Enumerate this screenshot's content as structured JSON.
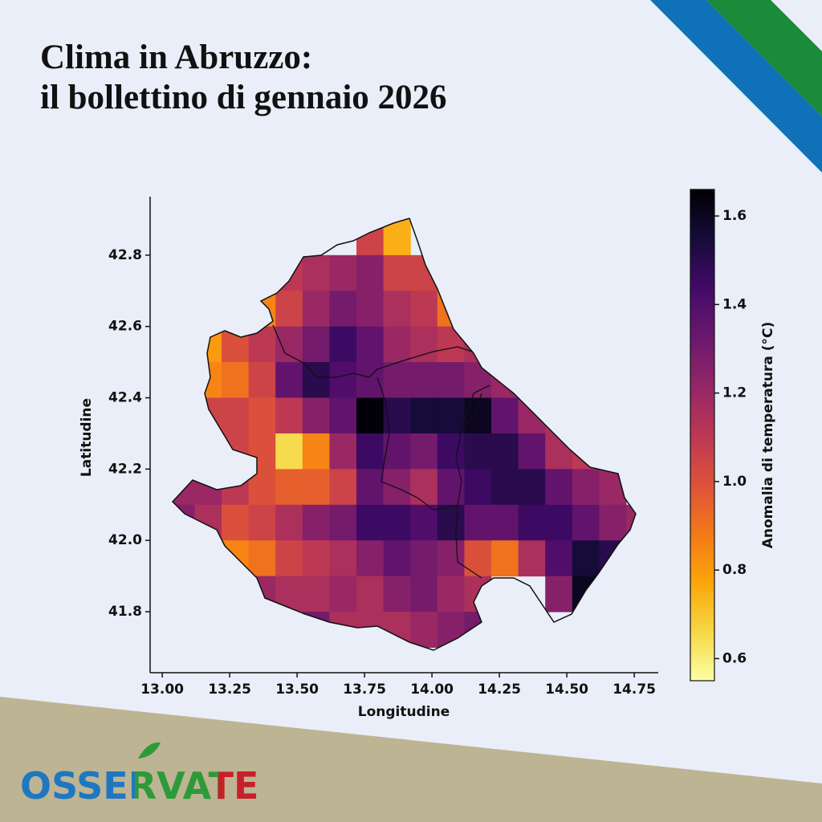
{
  "title_lines": [
    "Clima in Abruzzo:",
    "il bollettino di gennaio 2026"
  ],
  "logo": "OSSERVATE",
  "chart_data": {
    "type": "heatmap",
    "colormap": "inferno_r",
    "xlabel": "Longitudine",
    "ylabel": "Latitudine",
    "colorbar_label": "Anomalia di temperatura (°C)",
    "x": [
      13.07,
      13.17,
      13.27,
      13.37,
      13.47,
      13.57,
      13.67,
      13.77,
      13.87,
      13.97,
      14.07,
      14.17,
      14.27,
      14.37,
      14.47,
      14.57,
      14.67,
      14.77
    ],
    "y": [
      42.85,
      42.75,
      42.65,
      42.55,
      42.45,
      42.35,
      42.25,
      42.15,
      42.05,
      41.95,
      41.85,
      41.75
    ],
    "values": [
      [
        null,
        null,
        null,
        null,
        null,
        null,
        null,
        1.05,
        0.75,
        null,
        null,
        null,
        null,
        null,
        null,
        null,
        null,
        null
      ],
      [
        null,
        null,
        null,
        null,
        1.1,
        1.15,
        1.2,
        1.25,
        1.05,
        1.05,
        null,
        null,
        null,
        null,
        null,
        null,
        null,
        null
      ],
      [
        null,
        null,
        null,
        0.85,
        1.05,
        1.2,
        1.3,
        1.25,
        1.15,
        1.1,
        0.9,
        null,
        null,
        null,
        null,
        null,
        null,
        null
      ],
      [
        null,
        0.8,
        1.0,
        1.1,
        1.2,
        1.3,
        1.45,
        1.35,
        1.2,
        1.15,
        1.1,
        1.15,
        null,
        null,
        null,
        null,
        null,
        null
      ],
      [
        null,
        0.85,
        0.9,
        1.05,
        1.35,
        1.5,
        1.4,
        1.35,
        1.3,
        1.3,
        1.3,
        1.25,
        1.2,
        null,
        null,
        null,
        null,
        null
      ],
      [
        null,
        1.05,
        1.05,
        1.0,
        1.1,
        1.25,
        1.35,
        1.65,
        1.5,
        1.55,
        1.55,
        1.6,
        1.35,
        1.2,
        1.15,
        null,
        null,
        null
      ],
      [
        null,
        1.1,
        1.05,
        1.0,
        0.65,
        0.85,
        1.2,
        1.45,
        1.35,
        1.3,
        1.45,
        1.5,
        1.5,
        1.35,
        1.15,
        1.1,
        null,
        null
      ],
      [
        1.2,
        1.2,
        1.1,
        1.0,
        0.95,
        0.95,
        1.05,
        1.35,
        1.25,
        1.15,
        1.35,
        1.45,
        1.5,
        1.5,
        1.35,
        1.25,
        1.2,
        null
      ],
      [
        1.25,
        1.15,
        1.0,
        1.05,
        1.15,
        1.25,
        1.3,
        1.45,
        1.45,
        1.4,
        1.5,
        1.35,
        1.35,
        1.45,
        1.45,
        1.35,
        1.25,
        1.2
      ],
      [
        null,
        null,
        0.85,
        0.9,
        1.05,
        1.1,
        1.15,
        1.25,
        1.35,
        1.3,
        1.25,
        1.0,
        0.9,
        1.15,
        1.4,
        1.55,
        1.5,
        null
      ],
      [
        null,
        null,
        null,
        1.2,
        1.15,
        1.15,
        1.2,
        1.15,
        1.25,
        1.3,
        1.2,
        1.15,
        null,
        null,
        1.25,
        1.6,
        null,
        null
      ],
      [
        null,
        null,
        null,
        null,
        null,
        1.3,
        1.15,
        1.15,
        1.15,
        1.2,
        1.25,
        1.3,
        null,
        null,
        null,
        null,
        null,
        null
      ]
    ],
    "xlim": [
      12.955,
      14.839
    ],
    "ylim": [
      41.629,
      42.964
    ],
    "xticks": [
      {
        "value": 13,
        "label": "13.00"
      },
      13.25,
      {
        "value": 13.5,
        "label": "13.50"
      },
      13.75,
      {
        "value": 14,
        "label": "14.00"
      },
      14.25,
      {
        "value": 14.5,
        "label": "14.50"
      },
      14.75
    ],
    "yticks": [
      {
        "value": 41.8,
        "label": "41.8"
      },
      {
        "value": 42,
        "label": "42.0"
      },
      42.2,
      42.4,
      42.6,
      42.8
    ],
    "clim": [
      0.55,
      1.66
    ],
    "cticks": [
      0.6,
      0.8,
      {
        "value": 1,
        "label": "1.0"
      },
      1.2,
      1.4,
      1.6
    ]
  }
}
